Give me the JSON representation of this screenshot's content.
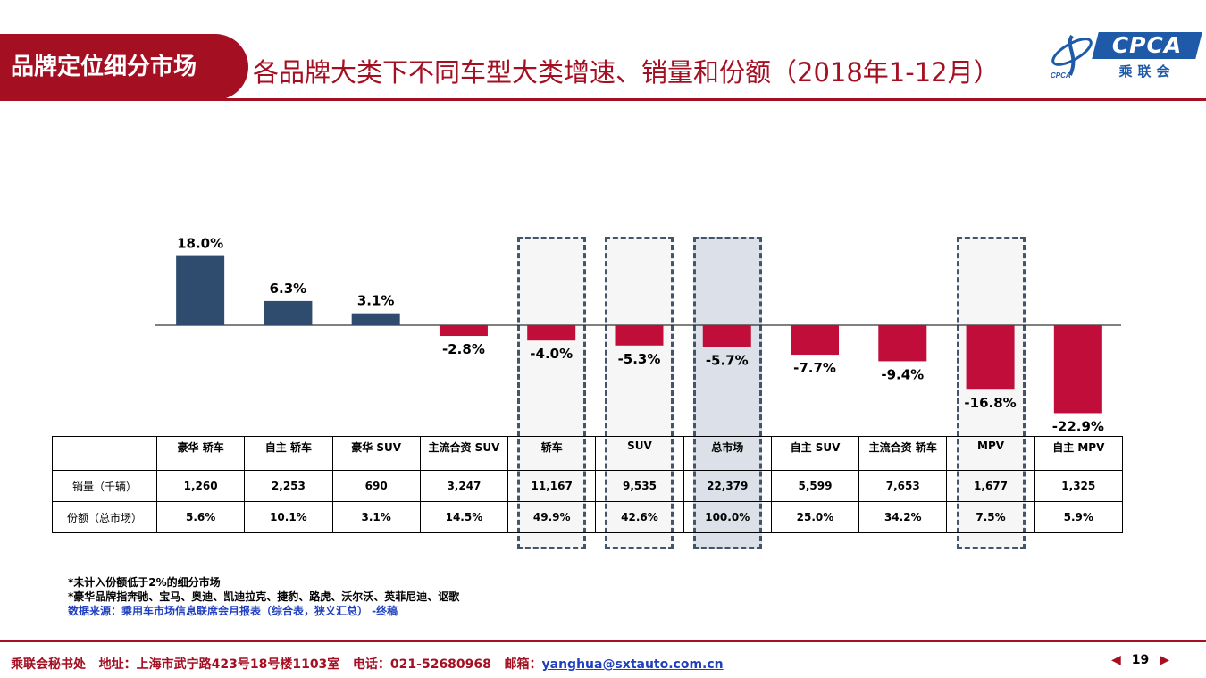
{
  "header": {
    "section_label": "品牌定位细分市场",
    "title": "各品牌大类下不同车型大类增速、销量和份额（2018年1-12月）"
  },
  "logo": {
    "brand_text": "CPCA",
    "sub_text": "乘联会",
    "mark_text": "CPCA"
  },
  "colors": {
    "positive": "#2f4b6e",
    "negative": "#c00d3a",
    "accent": "#a50f22",
    "highlight_border": "#44546a"
  },
  "chart_data": {
    "type": "bar",
    "categories": [
      "豪华 轿车",
      "自主 轿车",
      "豪华 SUV",
      "主流合资 SUV",
      "轿车",
      "SUV",
      "总市场",
      "自主 SUV",
      "主流合资 轿车",
      "MPV",
      "自主 MPV"
    ],
    "values": [
      18.0,
      6.3,
      3.1,
      -2.8,
      -4.0,
      -5.3,
      -5.7,
      -7.7,
      -9.4,
      -16.8,
      -22.9
    ],
    "data_labels": [
      "18.0%",
      "6.3%",
      "3.1%",
      "-2.8%",
      "-4.0%",
      "-5.3%",
      "-5.7%",
      "-7.7%",
      "-9.4%",
      "-16.8%",
      "-22.9%"
    ],
    "highlighted": [
      "轿车",
      "SUV",
      "总市场",
      "MPV"
    ],
    "highlight_style": [
      "light",
      "light",
      "dark",
      "light"
    ],
    "title": "",
    "xlabel": "",
    "ylabel": ""
  },
  "table": {
    "rows": [
      {
        "label": "销量（千辆）",
        "values": [
          "1,260",
          "2,253",
          "690",
          "3,247",
          "11,167",
          "9,535",
          "22,379",
          "5,599",
          "7,653",
          "1,677",
          "1,325"
        ]
      },
      {
        "label": "份额（总市场）",
        "values": [
          "5.6%",
          "10.1%",
          "3.1%",
          "14.5%",
          "49.9%",
          "42.6%",
          "100.0%",
          "25.0%",
          "34.2%",
          "7.5%",
          "5.9%"
        ]
      }
    ]
  },
  "notes": {
    "line1": "*未计入份额低于2%的细分市场",
    "line2": "*豪华品牌指奔驰、宝马、奥迪、凯迪拉克、捷豹、路虎、沃尔沃、英菲尼迪、讴歌",
    "source": "数据来源：乘用车市场信息联席会月报表（综合表，狭义汇总） -终稿"
  },
  "footer": {
    "org": "乘联会秘书处",
    "address": "地址：上海市武宁路423号18号楼1103室",
    "phone": "电话：021-52680968",
    "email_label": "邮箱：",
    "email": "yanghua@sxtauto.com.cn"
  },
  "pager": {
    "page": "19",
    "prev": "◀",
    "next": "▶"
  }
}
